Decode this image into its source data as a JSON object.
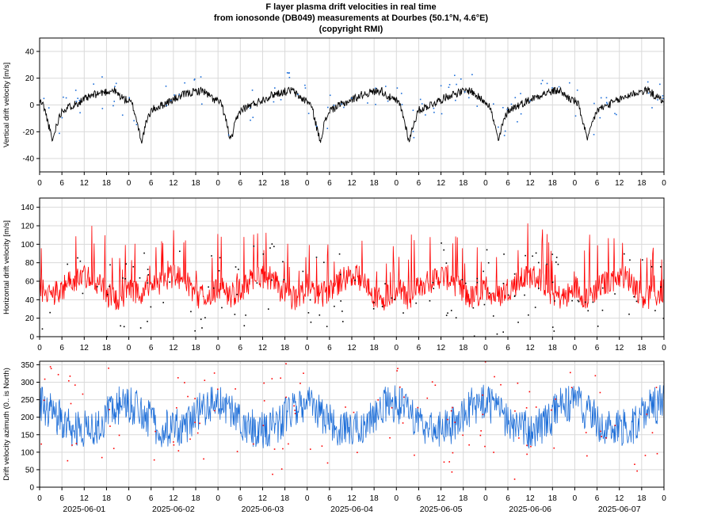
{
  "title": {
    "line1": "F layer plasma drift velocities in real time",
    "line2": "from ionosonde (DB049) measurements at Dourbes (50.1°N, 4.6°E)",
    "line3": "(copyright RMI)"
  },
  "colors": {
    "vertical_line": "#000000",
    "vertical_points": "#1f6fd8",
    "horizontal_line": "#ff0000",
    "horizontal_points": "#000000",
    "azimuth_line": "#1f6fd8",
    "azimuth_points": "#ff0000",
    "grid": "#d9d9d9"
  },
  "chart_data": [
    {
      "type": "line",
      "ylabel": "Vertical drift velocity [m/s]",
      "ylim": [
        -50,
        50
      ],
      "yticks": [
        -40,
        -20,
        0,
        20,
        40
      ],
      "xticklabels": [
        "0",
        "6",
        "12",
        "18",
        "0",
        "6",
        "12",
        "18",
        "0",
        "6",
        "12",
        "18",
        "0",
        "6",
        "12",
        "18",
        "0",
        "6",
        "12",
        "18",
        "0",
        "6",
        "12",
        "18",
        "0",
        "6",
        "12",
        "18",
        "0"
      ],
      "x_range_hours": [
        0,
        168
      ],
      "grid": true,
      "series": [
        {
          "role": "line",
          "profile_hours": [
            0,
            1,
            2,
            3,
            3.5,
            4.5,
            6,
            9,
            12,
            15,
            18,
            20,
            21,
            22,
            23,
            24
          ],
          "profile_values": [
            3,
            0,
            -10,
            -22,
            -27,
            -15,
            -4,
            0,
            4,
            8,
            10,
            11,
            8,
            6,
            4,
            3
          ]
        },
        {
          "role": "points",
          "scatter_count": 120
        }
      ]
    },
    {
      "type": "line",
      "ylabel": "Horizontal drift velocity [m/s]",
      "ylim": [
        0,
        150
      ],
      "yticks": [
        0,
        20,
        40,
        60,
        80,
        100,
        120,
        140
      ],
      "xticklabels": [
        "0",
        "6",
        "12",
        "18",
        "0",
        "6",
        "12",
        "18",
        "0",
        "6",
        "12",
        "18",
        "0",
        "6",
        "12",
        "18",
        "0",
        "6",
        "12",
        "18",
        "0",
        "6",
        "12",
        "18",
        "0",
        "6",
        "12",
        "18",
        "0"
      ],
      "x_range_hours": [
        0,
        168
      ],
      "grid": true,
      "series": [
        {
          "role": "line",
          "profile_hours": [
            0,
            3,
            6,
            9,
            12,
            15,
            18,
            21,
            24
          ],
          "profile_values": [
            55,
            42,
            52,
            60,
            66,
            62,
            45,
            42,
            50
          ]
        },
        {
          "role": "points",
          "scatter_count": 150
        }
      ]
    },
    {
      "type": "line",
      "ylabel": "Drift velocity azimuth (0.. is North)",
      "ylim": [
        0,
        360
      ],
      "yticks": [
        0,
        50,
        100,
        150,
        200,
        250,
        300,
        350
      ],
      "xticklabels": [
        "0",
        "6",
        "12",
        "18",
        "0",
        "6",
        "12",
        "18",
        "0",
        "6",
        "12",
        "18",
        "0",
        "6",
        "12",
        "18",
        "0",
        "6",
        "12",
        "18",
        "0",
        "6",
        "12",
        "18",
        "0",
        "6",
        "12",
        "18",
        "0"
      ],
      "date_labels": [
        "2025-06-01",
        "2025-06-02",
        "2025-06-03",
        "2025-06-04",
        "2025-06-05",
        "2025-06-06",
        "2025-06-07"
      ],
      "x_range_hours": [
        0,
        168
      ],
      "grid": true,
      "series": [
        {
          "role": "line",
          "profile_hours": [
            0,
            4,
            8,
            12,
            16,
            20,
            24
          ],
          "profile_values": [
            240,
            210,
            170,
            165,
            180,
            230,
            240
          ]
        },
        {
          "role": "points",
          "scatter_count": 130
        }
      ]
    }
  ]
}
